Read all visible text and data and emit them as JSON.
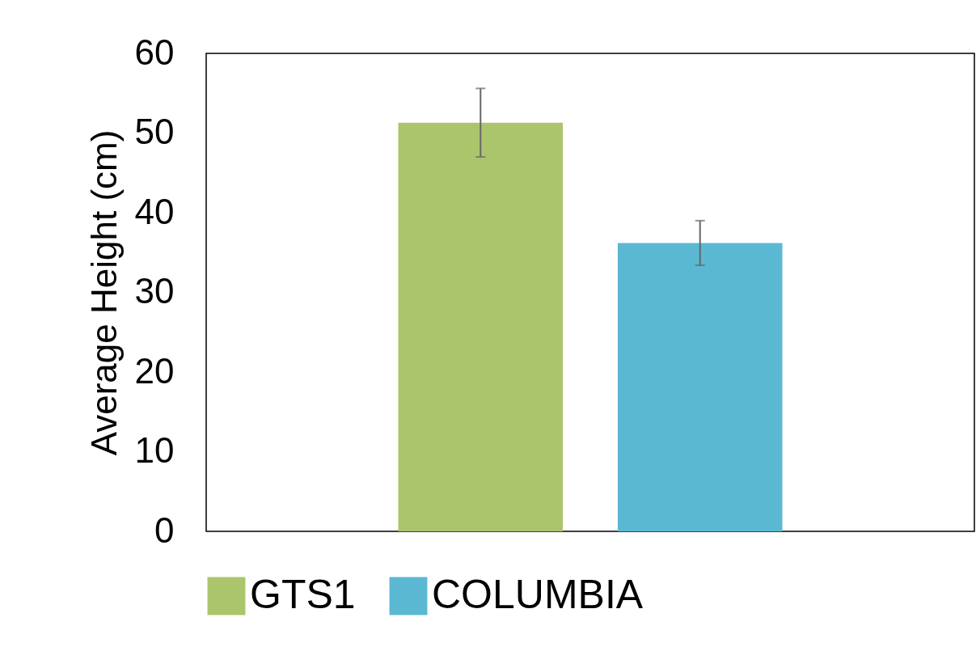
{
  "chart_data": {
    "type": "bar",
    "ylabel": "Average Height (cm)",
    "categories": [
      null
    ],
    "series": [
      {
        "name": "GTS1",
        "color": "#abc56c",
        "values": [
          51.3
        ],
        "errors": [
          4.3
        ]
      },
      {
        "name": "COLUMBIA",
        "color": "#5bb8d2",
        "values": [
          36.2
        ],
        "errors": [
          2.8
        ]
      }
    ],
    "ylim": [
      0,
      60
    ],
    "yticks": [
      0,
      10,
      20,
      30,
      40,
      50,
      60
    ],
    "legend": "bottom",
    "tick_labels": "y"
  }
}
